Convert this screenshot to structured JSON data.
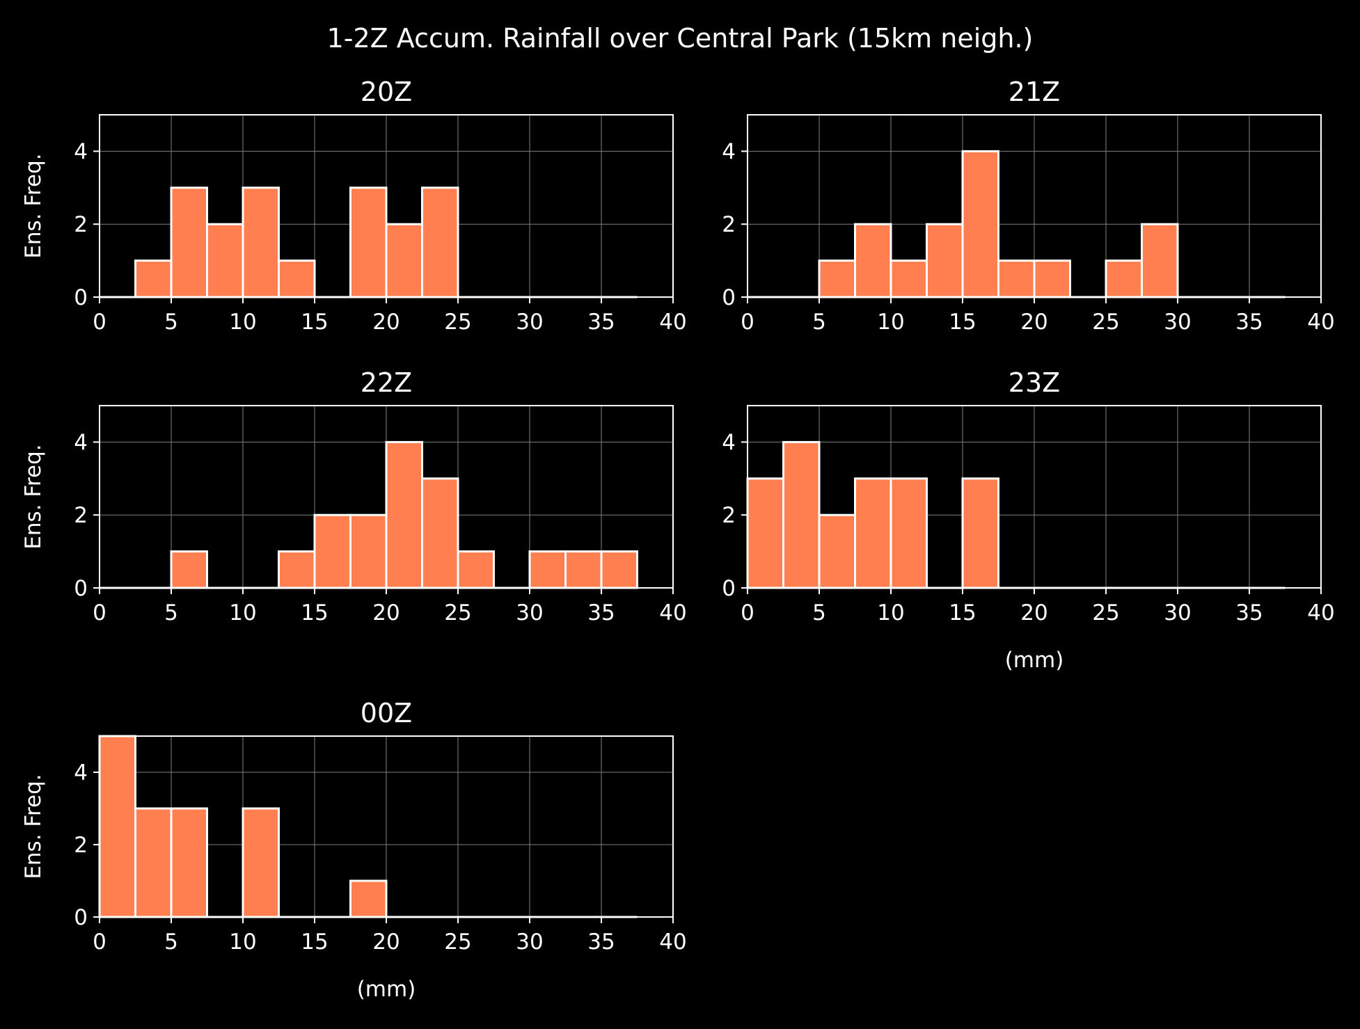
{
  "suptitle": "1-2Z Accum. Rainfall over Central Park (15km neigh.)",
  "colors": {
    "bar": "#ff7f50",
    "edge": "#ffffff",
    "background": "#000000",
    "grid": "#7f7f7f"
  },
  "chart_data": [
    {
      "type": "bar",
      "title": "20Z",
      "ylabel": "Ens. Freq.",
      "xlabel": "",
      "xlim": [
        0,
        40
      ],
      "ylim": [
        0,
        5
      ],
      "xticks": [
        0,
        5,
        10,
        15,
        20,
        25,
        30,
        35,
        40
      ],
      "yticks": [
        0,
        2,
        4
      ],
      "bin_edges": [
        0,
        2.5,
        5,
        7.5,
        10,
        12.5,
        15,
        17.5,
        20,
        22.5,
        25,
        27.5,
        30,
        32.5,
        35,
        37.5
      ],
      "values": [
        0,
        1,
        3,
        2,
        3,
        1,
        0,
        3,
        2,
        3,
        0,
        0,
        0,
        0,
        0
      ],
      "grid": true
    },
    {
      "type": "bar",
      "title": "21Z",
      "ylabel": "",
      "xlabel": "",
      "xlim": [
        0,
        40
      ],
      "ylim": [
        0,
        5
      ],
      "xticks": [
        0,
        5,
        10,
        15,
        20,
        25,
        30,
        35,
        40
      ],
      "yticks": [
        0,
        2,
        4
      ],
      "bin_edges": [
        0,
        2.5,
        5,
        7.5,
        10,
        12.5,
        15,
        17.5,
        20,
        22.5,
        25,
        27.5,
        30,
        32.5,
        35,
        37.5
      ],
      "values": [
        0,
        0,
        1,
        2,
        1,
        2,
        4,
        1,
        1,
        0,
        1,
        2,
        0,
        0,
        0
      ],
      "grid": true
    },
    {
      "type": "bar",
      "title": "22Z",
      "ylabel": "Ens. Freq.",
      "xlabel": "",
      "xlim": [
        0,
        40
      ],
      "ylim": [
        0,
        5
      ],
      "xticks": [
        0,
        5,
        10,
        15,
        20,
        25,
        30,
        35,
        40
      ],
      "yticks": [
        0,
        2,
        4
      ],
      "bin_edges": [
        0,
        2.5,
        5,
        7.5,
        10,
        12.5,
        15,
        17.5,
        20,
        22.5,
        25,
        27.5,
        30,
        32.5,
        35,
        37.5
      ],
      "values": [
        0,
        0,
        1,
        0,
        0,
        1,
        2,
        2,
        4,
        3,
        1,
        0,
        1,
        1,
        1
      ],
      "grid": true
    },
    {
      "type": "bar",
      "title": "23Z",
      "ylabel": "",
      "xlabel": "(mm)",
      "xlim": [
        0,
        40
      ],
      "ylim": [
        0,
        5
      ],
      "xticks": [
        0,
        5,
        10,
        15,
        20,
        25,
        30,
        35,
        40
      ],
      "yticks": [
        0,
        2,
        4
      ],
      "bin_edges": [
        0,
        2.5,
        5,
        7.5,
        10,
        12.5,
        15,
        17.5,
        20,
        22.5,
        25,
        27.5,
        30,
        32.5,
        35,
        37.5
      ],
      "values": [
        3,
        4,
        2,
        3,
        3,
        0,
        3,
        0,
        0,
        0,
        0,
        0,
        0,
        0,
        0
      ],
      "grid": true
    },
    {
      "type": "bar",
      "title": "00Z",
      "ylabel": "Ens. Freq.",
      "xlabel": "(mm)",
      "xlim": [
        0,
        40
      ],
      "ylim": [
        0,
        5
      ],
      "xticks": [
        0,
        5,
        10,
        15,
        20,
        25,
        30,
        35,
        40
      ],
      "yticks": [
        0,
        2,
        4
      ],
      "bin_edges": [
        0,
        2.5,
        5,
        7.5,
        10,
        12.5,
        15,
        17.5,
        20,
        22.5,
        25,
        27.5,
        30,
        32.5,
        35,
        37.5
      ],
      "values": [
        5,
        3,
        3,
        0,
        3,
        0,
        0,
        1,
        0,
        0,
        0,
        0,
        0,
        0,
        0
      ],
      "grid": true
    }
  ]
}
